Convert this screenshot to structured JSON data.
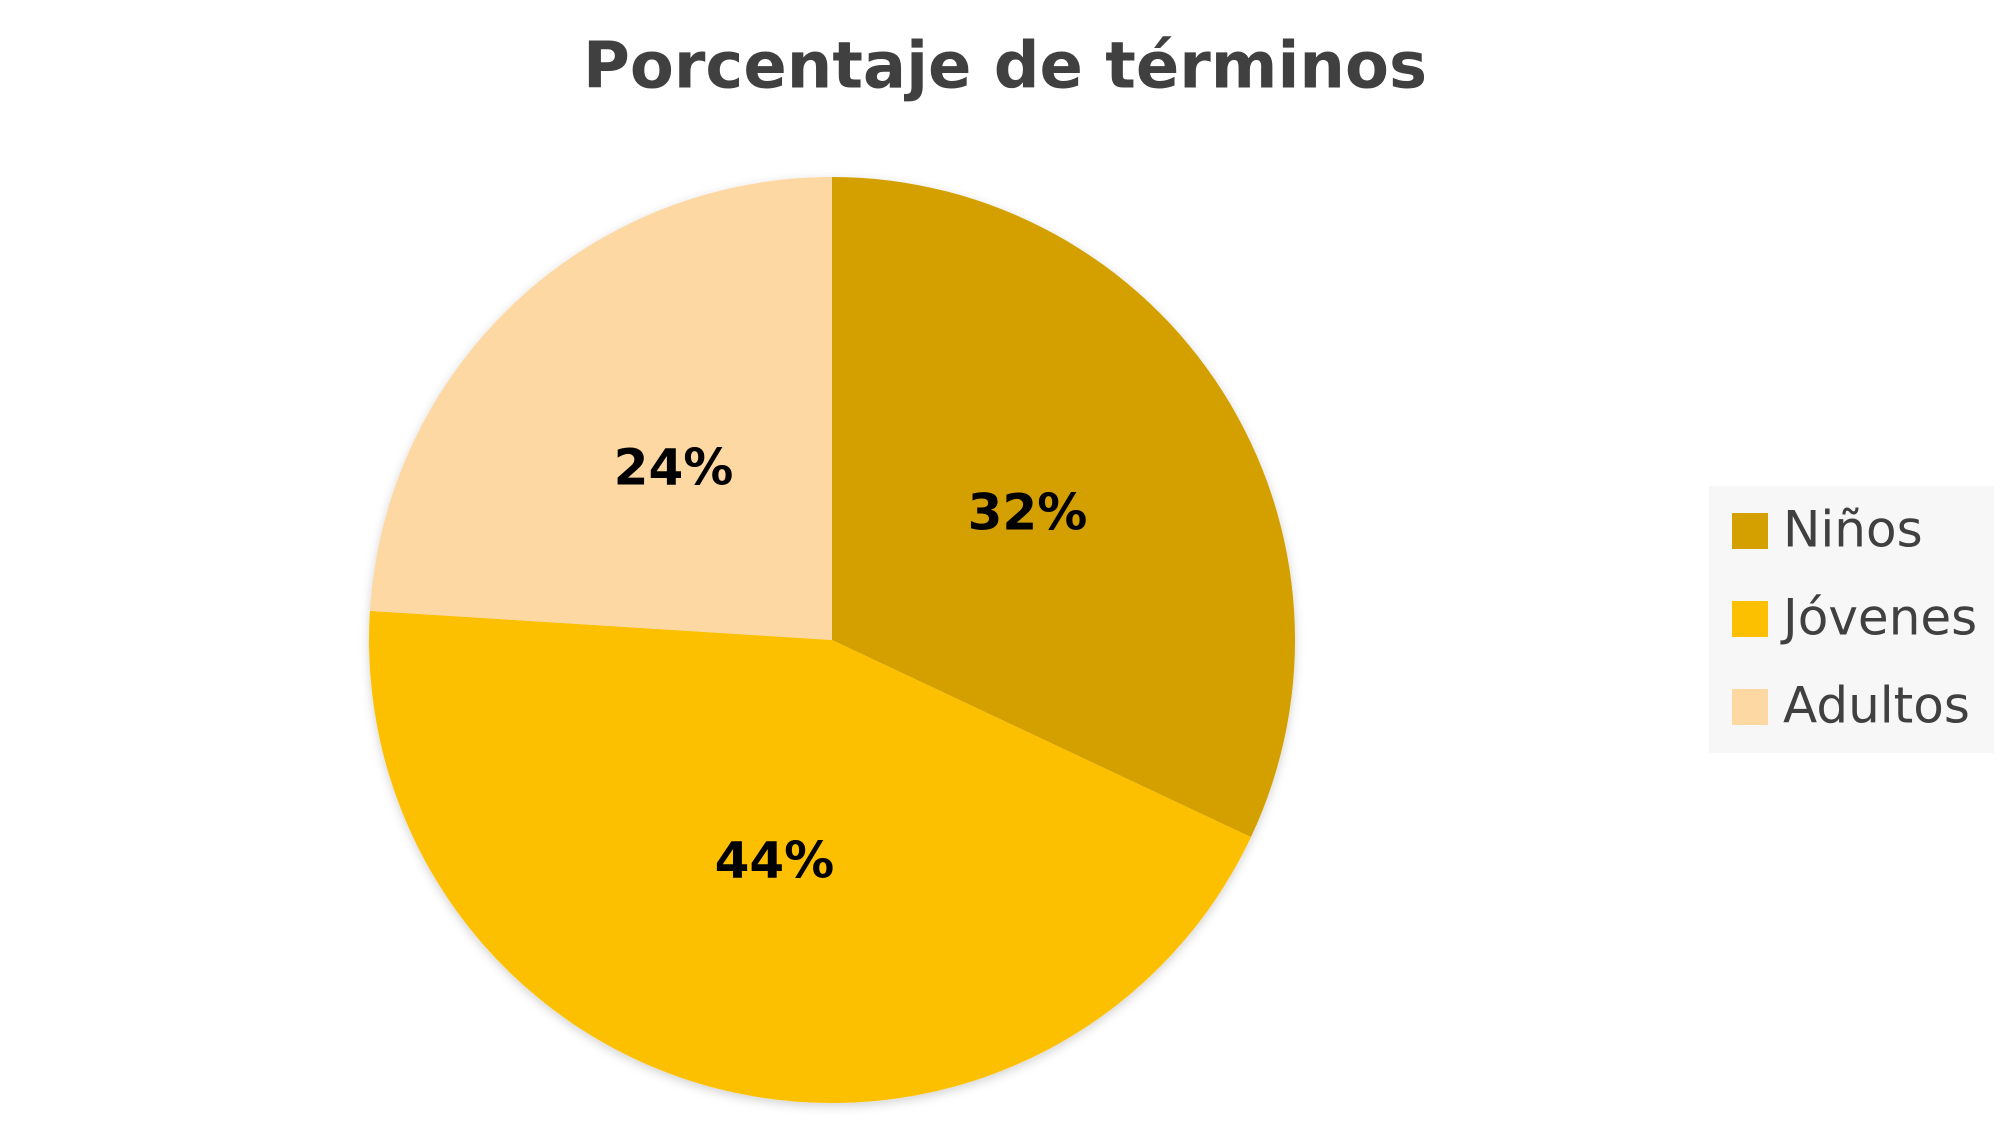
{
  "chart_data": {
    "type": "pie",
    "title": "Porcentaje de términos",
    "categories": [
      "Niños",
      "Jóvenes",
      "Adultos"
    ],
    "values": [
      32,
      44,
      24
    ],
    "value_labels": [
      "32%",
      "44%",
      "24%"
    ],
    "colors": [
      "#D4A000",
      "#FDC000",
      "#FDD8A2"
    ],
    "legend": "right"
  }
}
